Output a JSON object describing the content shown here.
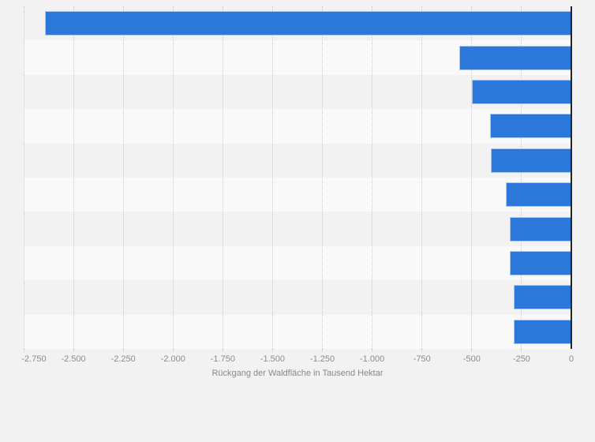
{
  "chart_data": {
    "type": "bar",
    "orientation": "horizontal",
    "title": "",
    "xlabel": "Rückgang der Waldfläche in Tausend Hektar",
    "ylabel": "",
    "xlim": [
      -2750,
      0
    ],
    "x_tick_values": [
      -2750,
      -2500,
      -2250,
      -2000,
      -1750,
      -1500,
      -1250,
      -1000,
      -750,
      -500,
      -250,
      0
    ],
    "x_tick_labels": [
      "-2.750",
      "-2.500",
      "-2.250",
      "-2.000",
      "-1.750",
      "-1.500",
      "-1.250",
      "-1.000",
      "-750",
      "-500",
      "-250",
      "0"
    ],
    "values": [
      -2642,
      -562,
      -498,
      -410,
      -403,
      -327,
      -311,
      -310,
      -290,
      -288
    ],
    "y_category_labels_visible": false,
    "legend": "none",
    "grid": "vertical-dotted",
    "row_banding": "alternating"
  },
  "colors": {
    "page_background": "#f2f2f2",
    "band_dark": "#f2f2f2",
    "band_light": "#f9f9f9",
    "bar": "#2b77da",
    "bar_border": "rgba(255,255,255,0.6)",
    "zero_axis_line": "#262626",
    "gridline": "#c9c9c9",
    "tick_label_text": "#8c8c8c",
    "axis_title_text": "#888888"
  }
}
